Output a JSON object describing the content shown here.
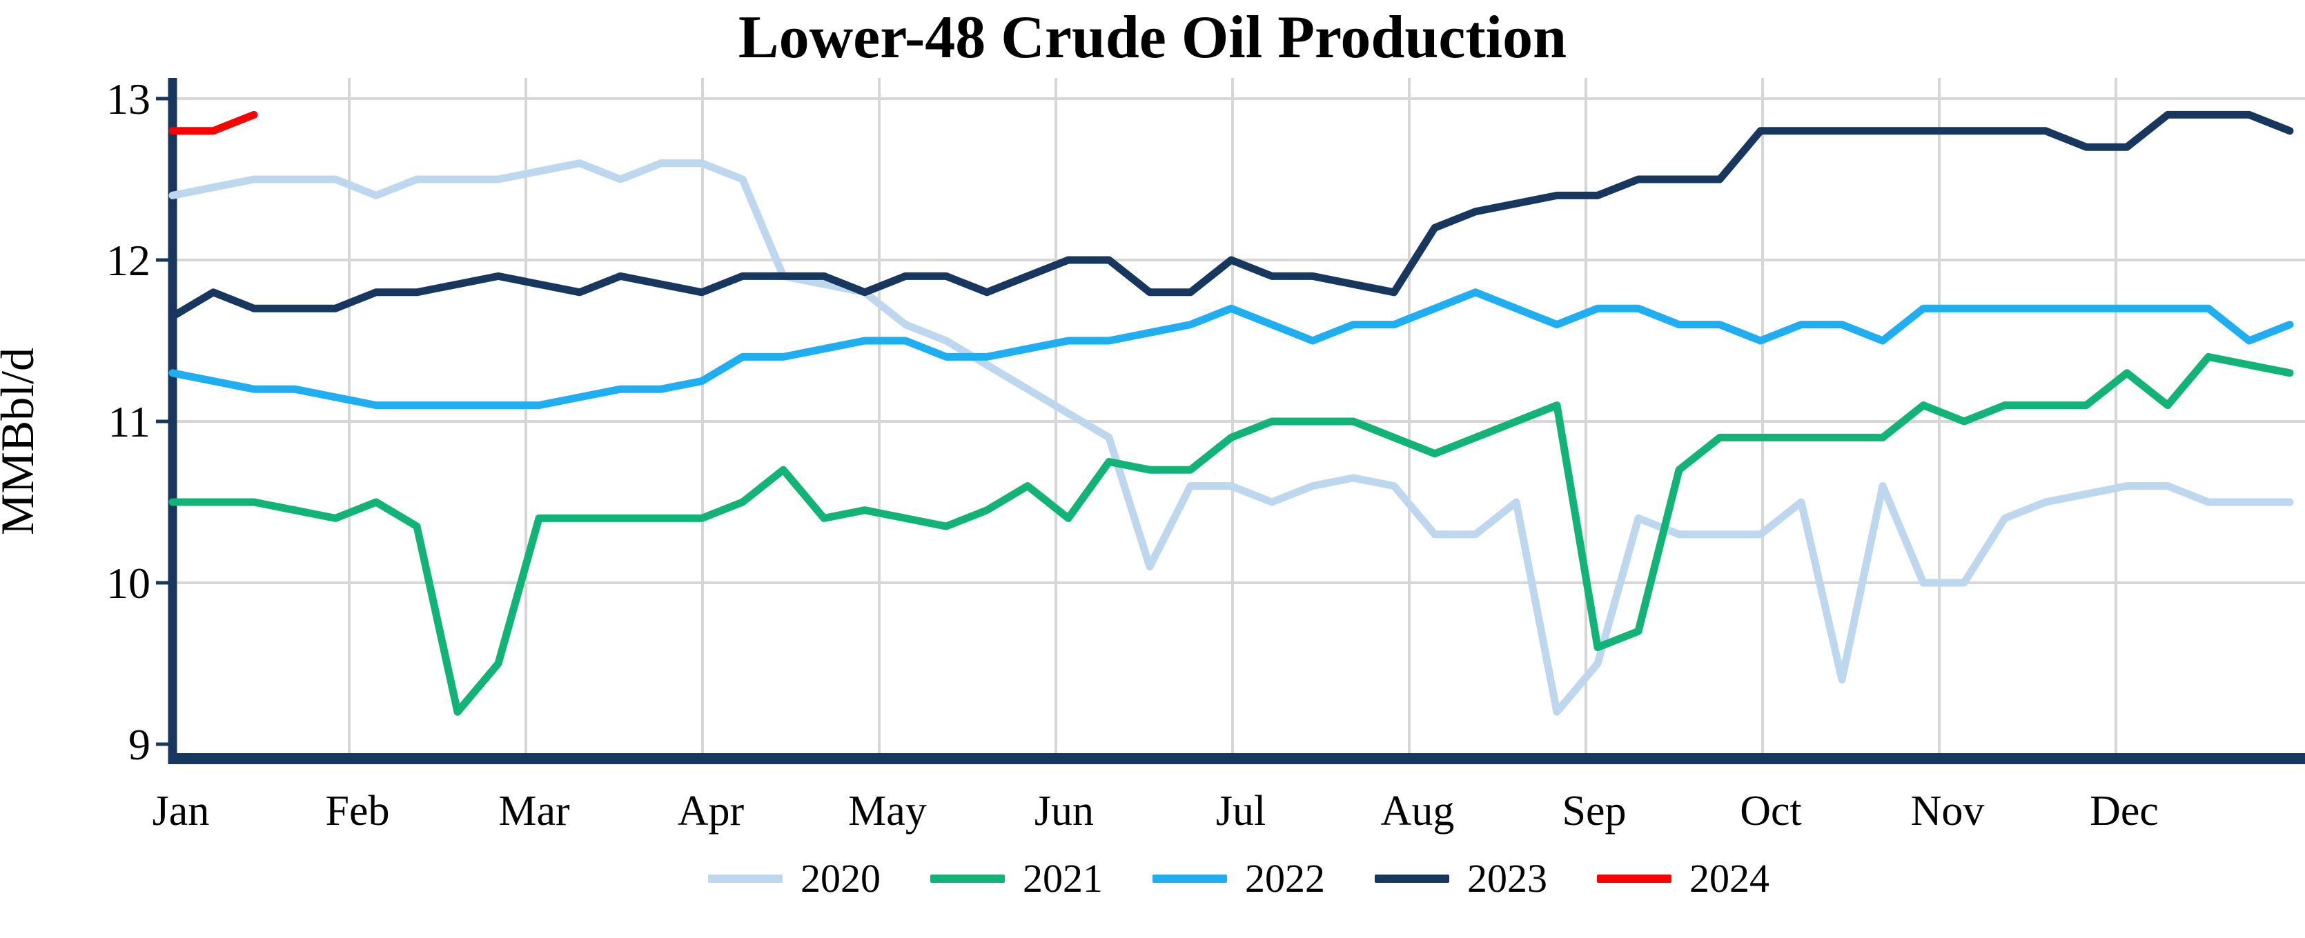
{
  "chart_data": {
    "type": "line",
    "title": "Lower-48 Crude Oil Production",
    "ylabel": "MMBbl/d",
    "xlabel": "",
    "ylim": [
      9,
      13
    ],
    "y_ticks": [
      "13",
      "12",
      "11",
      "10",
      "9"
    ],
    "x_tick_labels": [
      "Jan",
      "Feb",
      "Mar",
      "Apr",
      "May",
      "Jun",
      "Jul",
      "Aug",
      "Sep",
      "Oct",
      "Nov",
      "Dec"
    ],
    "grid": true,
    "legend_position": "bottom",
    "x_unit": "weekly observations across one year",
    "axis_color": "#17375E",
    "gridline_color": "#D6D6D6",
    "series": [
      {
        "name": "2020",
        "color": "#BDD7EE",
        "values": [
          12.4,
          12.45,
          12.5,
          12.5,
          12.5,
          12.4,
          12.5,
          12.5,
          12.5,
          12.55,
          12.6,
          12.5,
          12.6,
          12.6,
          12.5,
          11.9,
          11.85,
          11.8,
          11.6,
          11.5,
          11.35,
          11.2,
          11.05,
          10.9,
          10.1,
          10.6,
          10.6,
          10.5,
          10.6,
          10.65,
          10.6,
          10.3,
          10.3,
          10.5,
          9.2,
          9.5,
          10.4,
          10.3,
          10.3,
          10.3,
          10.5,
          9.4,
          10.6,
          10.0,
          10.0,
          10.4,
          10.5,
          10.55,
          10.6,
          10.6,
          10.5,
          10.5,
          10.5
        ]
      },
      {
        "name": "2021",
        "color": "#12B377",
        "values": [
          10.5,
          10.5,
          10.5,
          10.45,
          10.4,
          10.5,
          10.35,
          9.2,
          9.5,
          10.4,
          10.4,
          10.4,
          10.4,
          10.4,
          10.5,
          10.7,
          10.4,
          10.45,
          10.4,
          10.35,
          10.45,
          10.6,
          10.4,
          10.75,
          10.7,
          10.7,
          10.9,
          11.0,
          11.0,
          11.0,
          10.9,
          10.8,
          10.9,
          11.0,
          11.1,
          9.6,
          9.7,
          10.7,
          10.9,
          10.9,
          10.9,
          10.9,
          10.9,
          11.1,
          11.0,
          11.1,
          11.1,
          11.1,
          11.3,
          11.1,
          11.4,
          11.35,
          11.3
        ]
      },
      {
        "name": "2022",
        "color": "#1FAEF2",
        "values": [
          11.3,
          11.25,
          11.2,
          11.2,
          11.15,
          11.1,
          11.1,
          11.1,
          11.1,
          11.1,
          11.15,
          11.2,
          11.2,
          11.25,
          11.4,
          11.4,
          11.45,
          11.5,
          11.5,
          11.4,
          11.4,
          11.45,
          11.5,
          11.5,
          11.55,
          11.6,
          11.7,
          11.6,
          11.5,
          11.6,
          11.6,
          11.7,
          11.8,
          11.7,
          11.6,
          11.7,
          11.7,
          11.6,
          11.6,
          11.5,
          11.6,
          11.6,
          11.5,
          11.7,
          11.7,
          11.7,
          11.7,
          11.7,
          11.7,
          11.7,
          11.7,
          11.5,
          11.6
        ]
      },
      {
        "name": "2023",
        "color": "#17375E",
        "values": [
          11.65,
          11.8,
          11.7,
          11.7,
          11.7,
          11.8,
          11.8,
          11.85,
          11.9,
          11.85,
          11.8,
          11.9,
          11.85,
          11.8,
          11.9,
          11.9,
          11.9,
          11.8,
          11.9,
          11.9,
          11.8,
          11.9,
          12.0,
          12.0,
          11.8,
          11.8,
          12.0,
          11.9,
          11.9,
          11.85,
          11.8,
          12.2,
          12.3,
          12.35,
          12.4,
          12.4,
          12.5,
          12.5,
          12.5,
          12.8,
          12.8,
          12.8,
          12.8,
          12.8,
          12.8,
          12.8,
          12.8,
          12.7,
          12.7,
          12.9,
          12.9,
          12.9,
          12.8
        ]
      },
      {
        "name": "2024",
        "color": "#FB0000",
        "values": [
          12.8,
          12.8,
          12.9
        ]
      }
    ]
  }
}
